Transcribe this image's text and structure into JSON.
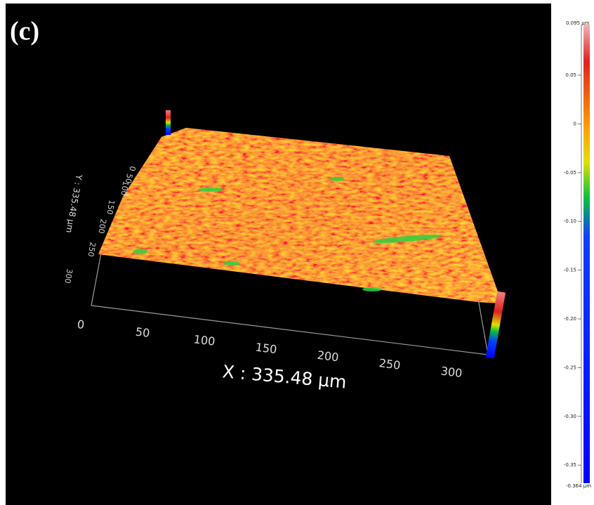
{
  "panel_label": "(c)",
  "x_axis": {
    "label": "X : 335.48 µm",
    "ticks": [
      "0",
      "50",
      "100",
      "150",
      "200",
      "250",
      "300"
    ]
  },
  "y_axis": {
    "label": "Y : 335.48 µm",
    "ticks": [
      "0",
      "50",
      "100",
      "150",
      "200",
      "250",
      "300"
    ]
  },
  "colorbar": {
    "max_label": "0.095 µm",
    "min_label": "-0.364 µm",
    "ticks": [
      "0.05",
      "0",
      "-0.05",
      "-0.10",
      "-0.15",
      "-0.20",
      "-0.25",
      "-0.30",
      "-0.35"
    ]
  }
}
